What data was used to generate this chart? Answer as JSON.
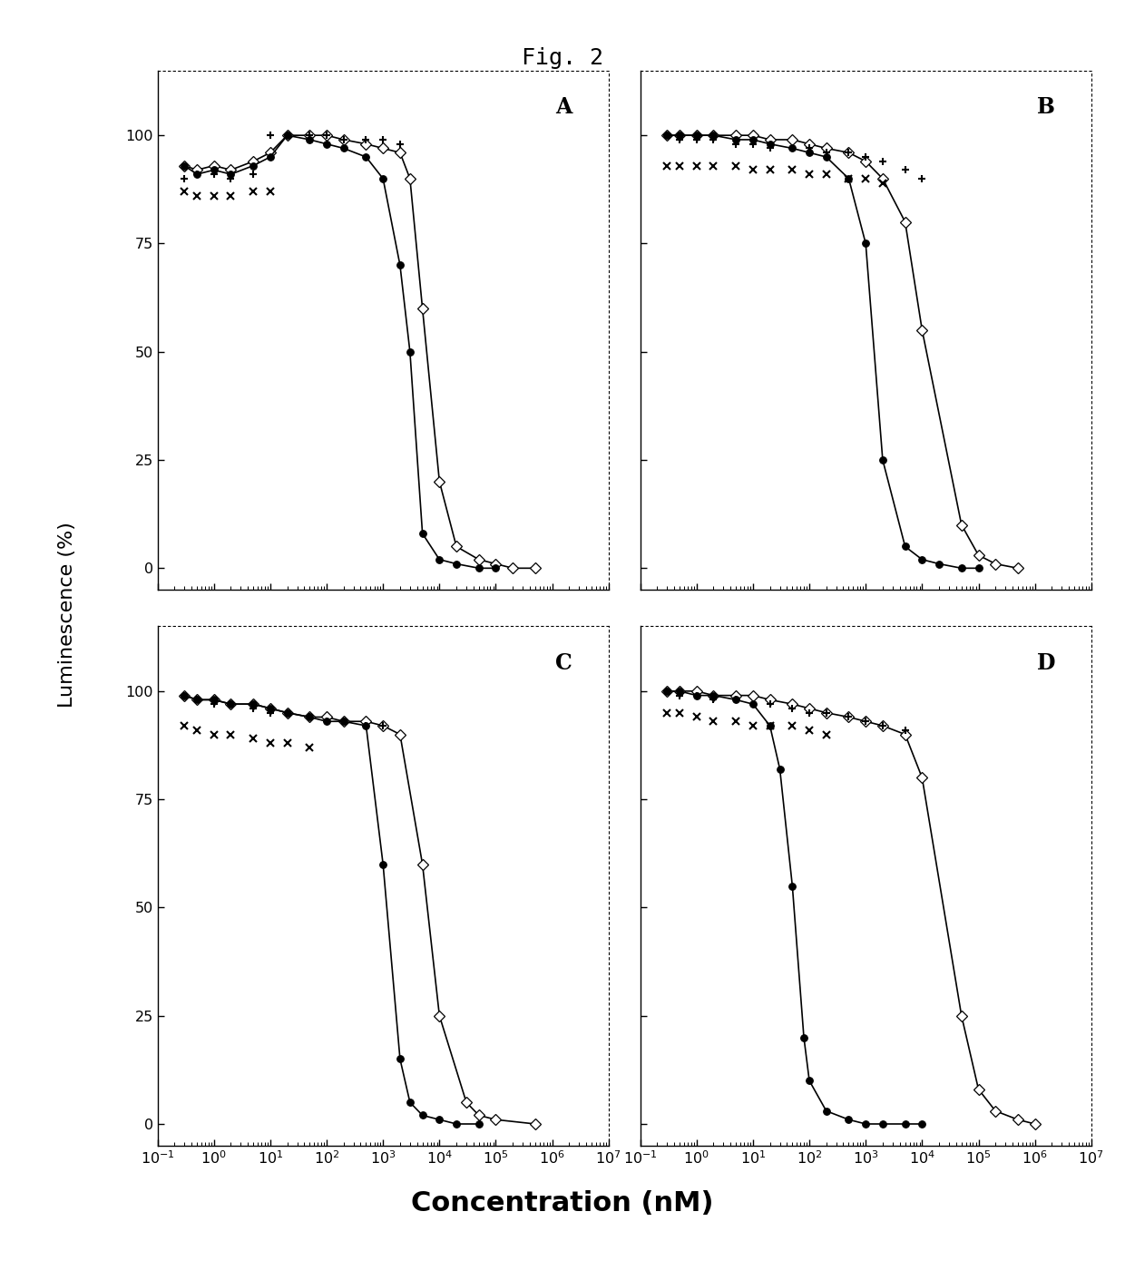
{
  "title": "Fig. 2",
  "xlabel": "Concentration (nM)",
  "ylabel": "Luminescence (%)",
  "panels": [
    "A",
    "B",
    "C",
    "D"
  ],
  "xlim": [
    0.1,
    10000000.0
  ],
  "ylim": [
    -5,
    115
  ],
  "yticks": [
    0,
    25,
    50,
    75,
    100
  ],
  "background_color": "#ffffff",
  "panel_A": {
    "filled_x": [
      0.3,
      0.5,
      1,
      2,
      5,
      10,
      20,
      50,
      100,
      200,
      500,
      1000,
      2000,
      3000,
      5000,
      10000,
      20000,
      50000,
      100000
    ],
    "filled_y": [
      93,
      91,
      92,
      91,
      93,
      95,
      100,
      99,
      98,
      97,
      95,
      90,
      70,
      50,
      8,
      2,
      1,
      0,
      0
    ],
    "open_x": [
      0.3,
      0.5,
      1,
      2,
      5,
      10,
      20,
      50,
      100,
      200,
      500,
      1000,
      2000,
      3000,
      5000,
      10000,
      20000,
      50000,
      100000,
      200000,
      500000
    ],
    "open_y": [
      93,
      92,
      93,
      92,
      94,
      96,
      100,
      100,
      100,
      99,
      98,
      97,
      96,
      90,
      60,
      20,
      5,
      2,
      1,
      0,
      0
    ],
    "extra1_x": [
      0.3,
      0.5,
      1,
      2,
      5,
      10,
      20,
      50,
      100,
      200,
      500,
      1000,
      2000
    ],
    "extra1_y": [
      90,
      91,
      91,
      90,
      91,
      100,
      100,
      100,
      100,
      99,
      99,
      99,
      98
    ],
    "extra2_x": [
      0.3,
      0.5,
      1,
      2,
      5,
      10
    ],
    "extra2_y": [
      87,
      86,
      86,
      86,
      87,
      87
    ]
  },
  "panel_B": {
    "filled_x": [
      0.3,
      0.5,
      1,
      2,
      5,
      10,
      20,
      50,
      100,
      200,
      500,
      1000,
      2000,
      5000,
      10000,
      20000,
      50000,
      100000
    ],
    "filled_y": [
      100,
      100,
      100,
      100,
      99,
      99,
      98,
      97,
      96,
      95,
      90,
      75,
      25,
      5,
      2,
      1,
      0,
      0
    ],
    "open_x": [
      0.3,
      0.5,
      1,
      2,
      5,
      10,
      20,
      50,
      100,
      200,
      500,
      1000,
      2000,
      5000,
      10000,
      50000,
      100000,
      200000,
      500000
    ],
    "open_y": [
      100,
      100,
      100,
      100,
      100,
      100,
      99,
      99,
      98,
      97,
      96,
      94,
      90,
      80,
      55,
      10,
      3,
      1,
      0
    ],
    "extra1_x": [
      0.3,
      0.5,
      1,
      2,
      5,
      10,
      20,
      50,
      100,
      200,
      500,
      1000,
      2000,
      5000,
      10000
    ],
    "extra1_y": [
      100,
      99,
      99,
      99,
      98,
      98,
      97,
      97,
      97,
      96,
      96,
      95,
      94,
      92,
      90
    ],
    "extra2_x": [
      0.3,
      0.5,
      1,
      2,
      5,
      10,
      20,
      50,
      100,
      200,
      500,
      1000,
      2000
    ],
    "extra2_y": [
      93,
      93,
      93,
      93,
      93,
      92,
      92,
      92,
      91,
      91,
      90,
      90,
      89
    ]
  },
  "panel_C": {
    "filled_x": [
      0.3,
      0.5,
      1,
      2,
      5,
      10,
      20,
      50,
      100,
      200,
      500,
      1000,
      2000,
      3000,
      5000,
      10000,
      20000,
      50000
    ],
    "filled_y": [
      99,
      98,
      98,
      97,
      97,
      96,
      95,
      94,
      93,
      93,
      92,
      60,
      15,
      5,
      2,
      1,
      0,
      0
    ],
    "open_x": [
      0.3,
      0.5,
      1,
      2,
      5,
      10,
      20,
      50,
      100,
      200,
      500,
      1000,
      2000,
      5000,
      10000,
      30000,
      50000,
      100000,
      500000
    ],
    "open_y": [
      99,
      98,
      98,
      97,
      97,
      96,
      95,
      94,
      94,
      93,
      93,
      92,
      90,
      60,
      25,
      5,
      2,
      1,
      0
    ],
    "extra1_x": [
      0.3,
      0.5,
      1,
      2,
      5,
      10,
      20,
      50,
      100,
      200,
      500,
      1000
    ],
    "extra1_y": [
      99,
      98,
      97,
      97,
      96,
      95,
      95,
      94,
      93,
      93,
      92,
      92
    ],
    "extra2_x": [
      0.3,
      0.5,
      1,
      2,
      5,
      10,
      20,
      50
    ],
    "extra2_y": [
      92,
      91,
      90,
      90,
      89,
      88,
      88,
      87
    ]
  },
  "panel_D": {
    "filled_x": [
      0.3,
      0.5,
      1,
      2,
      5,
      10,
      20,
      30,
      50,
      80,
      100,
      200,
      500,
      1000,
      2000,
      5000,
      10000
    ],
    "filled_y": [
      100,
      100,
      99,
      99,
      98,
      97,
      92,
      82,
      55,
      20,
      10,
      3,
      1,
      0,
      0,
      0,
      0
    ],
    "open_x": [
      0.3,
      0.5,
      1,
      2,
      5,
      10,
      20,
      50,
      100,
      200,
      500,
      1000,
      2000,
      5000,
      10000,
      50000,
      100000,
      200000,
      500000,
      1000000
    ],
    "open_y": [
      100,
      100,
      100,
      99,
      99,
      99,
      98,
      97,
      96,
      95,
      94,
      93,
      92,
      90,
      80,
      25,
      8,
      3,
      1,
      0
    ],
    "extra1_x": [
      0.3,
      0.5,
      1,
      2,
      5,
      10,
      20,
      50,
      100,
      200,
      500,
      1000,
      2000,
      5000
    ],
    "extra1_y": [
      100,
      99,
      99,
      98,
      98,
      97,
      97,
      96,
      95,
      95,
      94,
      93,
      92,
      91
    ],
    "extra2_x": [
      0.3,
      0.5,
      1,
      2,
      5,
      10,
      20,
      50,
      100,
      200
    ],
    "extra2_y": [
      95,
      95,
      94,
      93,
      93,
      92,
      92,
      92,
      91,
      90
    ]
  }
}
